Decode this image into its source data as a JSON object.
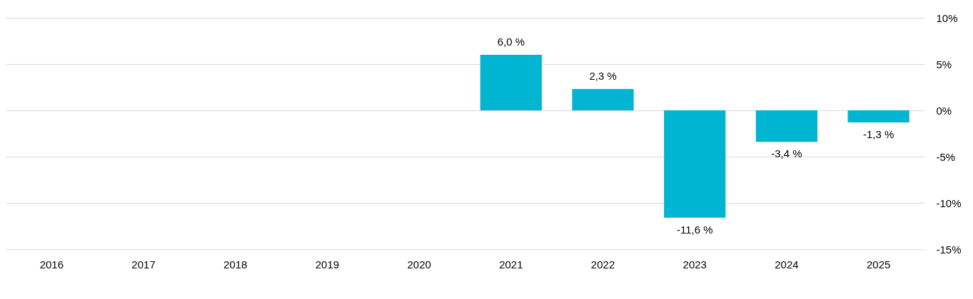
{
  "chart_data": {
    "type": "bar",
    "categories": [
      "2016",
      "2017",
      "2018",
      "2019",
      "2020",
      "2021",
      "2022",
      "2023",
      "2024",
      "2025"
    ],
    "series": [
      {
        "color": "#00b5d1",
        "values": [
          null,
          null,
          null,
          null,
          null,
          6.0,
          2.3,
          -11.6,
          -3.4,
          -1.3
        ],
        "value_labels": [
          null,
          null,
          null,
          null,
          null,
          "6,0 %",
          "2,3 %",
          "-11,6 %",
          "-3,4 %",
          "-1,3 %"
        ]
      }
    ],
    "ylim": [
      -15,
      10
    ],
    "yticks": [
      {
        "value": 10,
        "label": "10%"
      },
      {
        "value": 5,
        "label": "5%"
      },
      {
        "value": 0,
        "label": "0%"
      },
      {
        "value": -5,
        "label": "-5%"
      },
      {
        "value": -10,
        "label": "-10%"
      },
      {
        "value": -15,
        "label": "-15%"
      }
    ],
    "grid": "y"
  }
}
